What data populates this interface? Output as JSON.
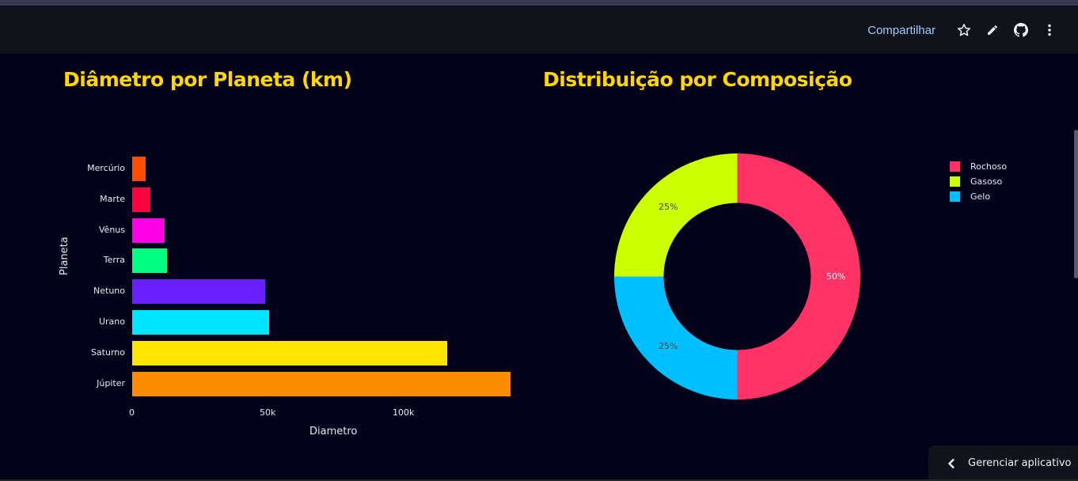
{
  "header": {
    "share_label": "Compartilhar",
    "icons": [
      "star-icon",
      "pencil-icon",
      "github-icon",
      "more-vertical-icon"
    ]
  },
  "bar_chart": {
    "title": "Diâmetro por Planeta (km)",
    "ylabel": "Planeta",
    "xlabel": "Diametro",
    "x_ticks": [
      "0",
      "50k",
      "100k"
    ]
  },
  "pie_chart": {
    "title": "Distribuição por Composição",
    "labels": [
      "Rochoso",
      "Gasoso",
      "Gelo"
    ],
    "percent_labels": [
      "50%",
      "25%",
      "25%"
    ]
  },
  "footer": {
    "manage_label": "Gerenciar aplicativo"
  },
  "chart_data": [
    {
      "type": "bar",
      "orientation": "horizontal",
      "title": "Diâmetro por Planeta (km)",
      "xlabel": "Diametro",
      "ylabel": "Planeta",
      "categories": [
        "Mercúrio",
        "Marte",
        "Vênus",
        "Terra",
        "Netuno",
        "Urano",
        "Saturno",
        "Júpiter"
      ],
      "values": [
        4879,
        6779,
        12104,
        12742,
        49244,
        50724,
        116460,
        139820
      ],
      "colors": [
        "#ff4d00",
        "#ff0040",
        "#ff00e6",
        "#00ff80",
        "#6a1fff",
        "#00e5ff",
        "#ffe500",
        "#ff8c00"
      ],
      "x_ticks": [
        "0",
        "50k",
        "100k"
      ],
      "xlim": [
        0,
        139820
      ],
      "grid": false,
      "legend": false
    },
    {
      "type": "pie",
      "hole": 0.6,
      "title": "Distribuição por Composição",
      "labels": [
        "Rochoso",
        "Gasoso",
        "Gelo"
      ],
      "values": [
        50,
        25,
        25
      ],
      "percent_labels": [
        "50%",
        "25%",
        "25%"
      ],
      "colors": [
        "#ff3366",
        "#ccff00",
        "#00bfff"
      ],
      "legend_position": "right"
    }
  ]
}
